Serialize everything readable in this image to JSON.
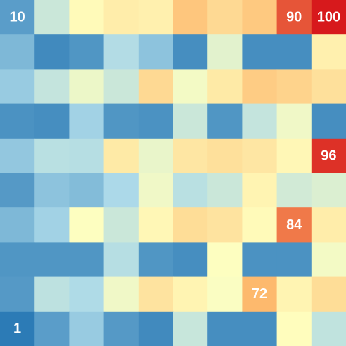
{
  "chart_data": {
    "type": "heatmap",
    "rows": 10,
    "cols": 10,
    "color_min": 1,
    "color_max": 100,
    "colormap": [
      "#2c7bb6",
      "#abd9e9",
      "#ffffbf",
      "#fdae61",
      "#d7191c"
    ],
    "values": [
      [
        10,
        35,
        52,
        56,
        55,
        68,
        62,
        67,
        90,
        100
      ],
      [
        17,
        5,
        8,
        28,
        20,
        6,
        42,
        6,
        6,
        55
      ],
      [
        22,
        33,
        45,
        35,
        62,
        47,
        57,
        66,
        64,
        60
      ],
      [
        7,
        6,
        24,
        8,
        7,
        35,
        8,
        33,
        46,
        6
      ],
      [
        21,
        30,
        29,
        57,
        44,
        58,
        60,
        58,
        53,
        96
      ],
      [
        9,
        20,
        18,
        26,
        46,
        30,
        35,
        54,
        37,
        40
      ],
      [
        17,
        24,
        50,
        35,
        53,
        61,
        59,
        52,
        84,
        56
      ],
      [
        8,
        8,
        8,
        29,
        8,
        6,
        50,
        7,
        7,
        47
      ],
      [
        9,
        31,
        27,
        46,
        59,
        54,
        49,
        72,
        54,
        61
      ],
      [
        1,
        10,
        22,
        9,
        5,
        34,
        6,
        6,
        51,
        32
      ]
    ],
    "labels": [
      {
        "row": 0,
        "col": 0,
        "text": "10"
      },
      {
        "row": 0,
        "col": 8,
        "text": "90"
      },
      {
        "row": 0,
        "col": 9,
        "text": "100"
      },
      {
        "row": 4,
        "col": 9,
        "text": "96"
      },
      {
        "row": 6,
        "col": 8,
        "text": "84"
      },
      {
        "row": 8,
        "col": 7,
        "text": "72"
      },
      {
        "row": 9,
        "col": 0,
        "text": "1"
      }
    ]
  }
}
